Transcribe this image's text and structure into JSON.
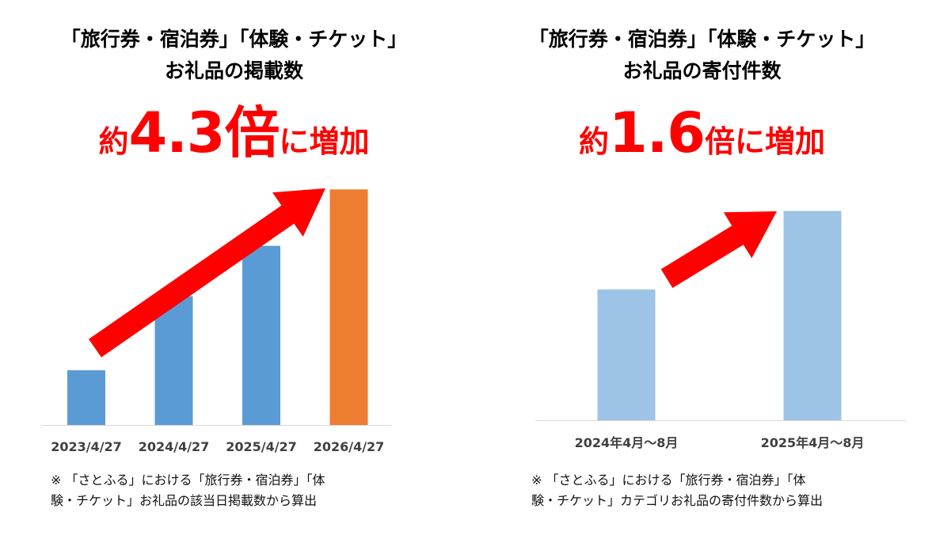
{
  "charts": [
    {
      "title_line1": "「旅行券・宿泊券」「体験・チケット」",
      "title_line2": "お礼品の掲載数",
      "headline_prefix": "約",
      "headline_number": "4.3倍",
      "headline_suffix": "に増加",
      "footnote": "※ 「さとふる」における「旅行券・宿泊券」「体\n験・チケット」お礼品の該当日掲載数から算出"
    },
    {
      "title_line1": "「旅行券・宿泊券」「体験・チケット」",
      "title_line2": "お礼品の寄付件数",
      "headline_prefix": "約",
      "headline_number": "1.6",
      "headline_suffix": "倍に増加",
      "footnote": "※ 「さとふる」における「旅行券・宿泊券」「体\n験・チケット」カテゴリお礼品の寄付件数から算出"
    }
  ],
  "chart_data": [
    {
      "type": "bar",
      "categories": [
        "2023/4/27",
        "2024/4/27",
        "2025/4/27",
        "2026/4/27"
      ],
      "values": [
        1,
        2.35,
        3.27,
        4.3
      ],
      "ylim": [
        0,
        4.55
      ],
      "bar_colors": [
        "#5b9bd5",
        "#5b9bd5",
        "#5b9bd5",
        "#ed7d31"
      ],
      "arrow_color": "#ff0000",
      "grid": false,
      "legend": "none"
    },
    {
      "type": "bar",
      "categories": [
        "2024年4月～8月",
        "2025年4月～8月"
      ],
      "values": [
        1,
        1.6
      ],
      "ylim": [
        0,
        1.7
      ],
      "bar_colors": [
        "#9dc3e6",
        "#9dc3e6"
      ],
      "arrow_color": "#ff0000",
      "grid": false,
      "legend": "none"
    }
  ]
}
